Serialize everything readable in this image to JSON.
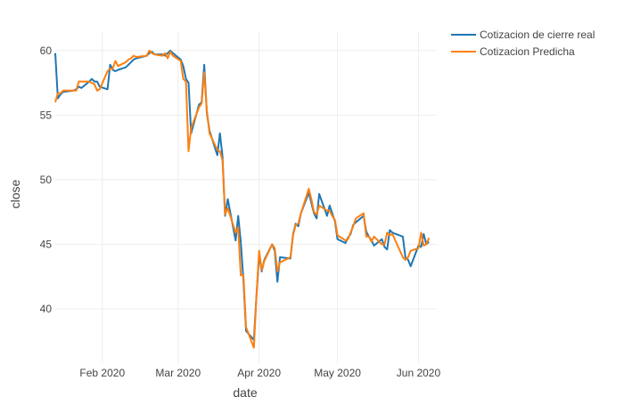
{
  "chart_data": {
    "type": "line",
    "title": "",
    "xlabel": "date",
    "ylabel": "close",
    "x_type": "date",
    "xlim": [
      "2020-01-14",
      "2020-06-08"
    ],
    "ylim": [
      35.8,
      61.5
    ],
    "grid": true,
    "legend_position": "top-right",
    "x_ticks": [
      {
        "date": "2020-02-01",
        "label": "Feb 2020"
      },
      {
        "date": "2020-03-01",
        "label": "Mar 2020"
      },
      {
        "date": "2020-04-01",
        "label": "Apr 2020"
      },
      {
        "date": "2020-05-01",
        "label": "May 2020"
      },
      {
        "date": "2020-06-01",
        "label": "Jun 2020"
      }
    ],
    "y_ticks": [
      40,
      45,
      50,
      55,
      60
    ],
    "series": [
      {
        "name": "Cotizacion de cierre real",
        "color": "#1f77b4",
        "points": [
          [
            "2020-01-14",
            59.8
          ],
          [
            "2020-01-15",
            56.3
          ],
          [
            "2020-01-16",
            56.6
          ],
          [
            "2020-01-17",
            56.8
          ],
          [
            "2020-01-21",
            56.9
          ],
          [
            "2020-01-22",
            57.0
          ],
          [
            "2020-01-23",
            57.2
          ],
          [
            "2020-01-24",
            57.1
          ],
          [
            "2020-01-27",
            57.6
          ],
          [
            "2020-01-28",
            57.8
          ],
          [
            "2020-01-29",
            57.6
          ],
          [
            "2020-01-30",
            57.6
          ],
          [
            "2020-01-31",
            57.2
          ],
          [
            "2020-02-03",
            57.0
          ],
          [
            "2020-02-04",
            58.9
          ],
          [
            "2020-02-05",
            58.5
          ],
          [
            "2020-02-06",
            58.4
          ],
          [
            "2020-02-07",
            58.5
          ],
          [
            "2020-02-10",
            58.7
          ],
          [
            "2020-02-11",
            58.9
          ],
          [
            "2020-02-12",
            59.1
          ],
          [
            "2020-02-13",
            59.3
          ],
          [
            "2020-02-14",
            59.4
          ],
          [
            "2020-02-18",
            59.6
          ],
          [
            "2020-02-19",
            59.8
          ],
          [
            "2020-02-20",
            59.9
          ],
          [
            "2020-02-21",
            59.7
          ],
          [
            "2020-02-24",
            59.7
          ],
          [
            "2020-02-25",
            59.6
          ],
          [
            "2020-02-26",
            59.8
          ],
          [
            "2020-02-27",
            60.0
          ],
          [
            "2020-02-28",
            59.8
          ],
          [
            "2020-03-02",
            59.3
          ],
          [
            "2020-03-03",
            58.8
          ],
          [
            "2020-03-04",
            57.8
          ],
          [
            "2020-03-05",
            57.5
          ],
          [
            "2020-03-06",
            53.6
          ],
          [
            "2020-03-09",
            55.8
          ],
          [
            "2020-03-10",
            56.0
          ],
          [
            "2020-03-11",
            58.9
          ],
          [
            "2020-03-12",
            55.2
          ],
          [
            "2020-03-13",
            53.8
          ],
          [
            "2020-03-16",
            51.9
          ],
          [
            "2020-03-17",
            53.6
          ],
          [
            "2020-03-18",
            51.8
          ],
          [
            "2020-03-19",
            47.2
          ],
          [
            "2020-03-20",
            48.5
          ],
          [
            "2020-03-23",
            45.3
          ],
          [
            "2020-03-24",
            47.2
          ],
          [
            "2020-03-25",
            45.2
          ],
          [
            "2020-03-26",
            42.2
          ],
          [
            "2020-03-27",
            38.3
          ],
          [
            "2020-03-30",
            37.6
          ],
          [
            "2020-03-31",
            41.0
          ],
          [
            "2020-04-01",
            44.2
          ],
          [
            "2020-04-02",
            42.9
          ],
          [
            "2020-04-03",
            43.8
          ],
          [
            "2020-04-06",
            45.0
          ],
          [
            "2020-04-07",
            44.5
          ],
          [
            "2020-04-08",
            42.1
          ],
          [
            "2020-04-09",
            44.0
          ],
          [
            "2020-04-13",
            43.9
          ],
          [
            "2020-04-14",
            45.8
          ],
          [
            "2020-04-15",
            46.6
          ],
          [
            "2020-04-16",
            46.4
          ],
          [
            "2020-04-17",
            47.4
          ],
          [
            "2020-04-20",
            49.0
          ],
          [
            "2020-04-21",
            48.2
          ],
          [
            "2020-04-22",
            47.4
          ],
          [
            "2020-04-23",
            47.0
          ],
          [
            "2020-04-24",
            48.9
          ],
          [
            "2020-04-27",
            47.2
          ],
          [
            "2020-04-28",
            48.0
          ],
          [
            "2020-04-29",
            47.4
          ],
          [
            "2020-04-30",
            46.8
          ],
          [
            "2020-05-01",
            45.4
          ],
          [
            "2020-05-04",
            45.1
          ],
          [
            "2020-05-05",
            45.5
          ],
          [
            "2020-05-06",
            45.8
          ],
          [
            "2020-05-07",
            46.5
          ],
          [
            "2020-05-08",
            46.7
          ],
          [
            "2020-05-11",
            47.2
          ],
          [
            "2020-05-12",
            46.0
          ],
          [
            "2020-05-13",
            45.6
          ],
          [
            "2020-05-14",
            45.3
          ],
          [
            "2020-05-15",
            44.9
          ],
          [
            "2020-05-18",
            45.4
          ],
          [
            "2020-05-19",
            44.8
          ],
          [
            "2020-05-20",
            44.6
          ],
          [
            "2020-05-21",
            46.1
          ],
          [
            "2020-05-22",
            45.9
          ],
          [
            "2020-05-26",
            45.6
          ],
          [
            "2020-05-27",
            44.0
          ],
          [
            "2020-05-28",
            43.8
          ],
          [
            "2020-05-29",
            43.3
          ],
          [
            "2020-06-01",
            44.9
          ],
          [
            "2020-06-02",
            44.8
          ],
          [
            "2020-06-03",
            45.8
          ],
          [
            "2020-06-04",
            45.0
          ],
          [
            "2020-06-05",
            45.2
          ]
        ]
      },
      {
        "name": "Cotizacion Predicha",
        "color": "#ff7f0e",
        "points": [
          [
            "2020-01-14",
            56.0
          ],
          [
            "2020-01-15",
            56.7
          ],
          [
            "2020-01-16",
            56.7
          ],
          [
            "2020-01-17",
            56.9
          ],
          [
            "2020-01-21",
            56.9
          ],
          [
            "2020-01-22",
            56.9
          ],
          [
            "2020-01-23",
            57.6
          ],
          [
            "2020-01-24",
            57.6
          ],
          [
            "2020-01-27",
            57.6
          ],
          [
            "2020-01-28",
            57.5
          ],
          [
            "2020-01-29",
            57.4
          ],
          [
            "2020-01-30",
            56.9
          ],
          [
            "2020-01-31",
            57.0
          ],
          [
            "2020-02-03",
            58.4
          ],
          [
            "2020-02-04",
            58.6
          ],
          [
            "2020-02-05",
            58.6
          ],
          [
            "2020-02-06",
            59.2
          ],
          [
            "2020-02-07",
            58.8
          ],
          [
            "2020-02-10",
            59.1
          ],
          [
            "2020-02-11",
            59.3
          ],
          [
            "2020-02-12",
            59.4
          ],
          [
            "2020-02-13",
            59.6
          ],
          [
            "2020-02-14",
            59.5
          ],
          [
            "2020-02-18",
            59.6
          ],
          [
            "2020-02-19",
            60.0
          ],
          [
            "2020-02-20",
            59.8
          ],
          [
            "2020-02-21",
            59.7
          ],
          [
            "2020-02-24",
            59.6
          ],
          [
            "2020-02-25",
            59.8
          ],
          [
            "2020-02-26",
            59.4
          ],
          [
            "2020-02-27",
            59.9
          ],
          [
            "2020-02-28",
            59.6
          ],
          [
            "2020-03-02",
            59.2
          ],
          [
            "2020-03-03",
            57.8
          ],
          [
            "2020-03-04",
            57.6
          ],
          [
            "2020-03-05",
            52.2
          ],
          [
            "2020-03-06",
            54.0
          ],
          [
            "2020-03-09",
            55.6
          ],
          [
            "2020-03-10",
            55.9
          ],
          [
            "2020-03-11",
            58.3
          ],
          [
            "2020-03-12",
            55.4
          ],
          [
            "2020-03-13",
            53.6
          ],
          [
            "2020-03-16",
            52.3
          ],
          [
            "2020-03-17",
            52.2
          ],
          [
            "2020-03-18",
            51.5
          ],
          [
            "2020-03-19",
            47.3
          ],
          [
            "2020-03-20",
            47.8
          ],
          [
            "2020-03-23",
            45.9
          ],
          [
            "2020-03-24",
            46.3
          ],
          [
            "2020-03-25",
            42.6
          ],
          [
            "2020-03-26",
            42.6
          ],
          [
            "2020-03-27",
            38.6
          ],
          [
            "2020-03-30",
            37.0
          ],
          [
            "2020-03-31",
            41.0
          ],
          [
            "2020-04-01",
            44.5
          ],
          [
            "2020-04-02",
            43.0
          ],
          [
            "2020-04-03",
            43.7
          ],
          [
            "2020-04-06",
            45.0
          ],
          [
            "2020-04-07",
            44.7
          ],
          [
            "2020-04-08",
            42.9
          ],
          [
            "2020-04-09",
            43.6
          ],
          [
            "2020-04-13",
            44.0
          ],
          [
            "2020-04-14",
            45.7
          ],
          [
            "2020-04-15",
            46.5
          ],
          [
            "2020-04-16",
            46.6
          ],
          [
            "2020-04-17",
            47.4
          ],
          [
            "2020-04-20",
            49.3
          ],
          [
            "2020-04-21",
            48.5
          ],
          [
            "2020-04-22",
            47.5
          ],
          [
            "2020-04-23",
            47.3
          ],
          [
            "2020-04-24",
            48.0
          ],
          [
            "2020-04-27",
            47.6
          ],
          [
            "2020-04-28",
            47.6
          ],
          [
            "2020-04-29",
            47.2
          ],
          [
            "2020-04-30",
            46.9
          ],
          [
            "2020-05-01",
            45.7
          ],
          [
            "2020-05-04",
            45.3
          ],
          [
            "2020-05-05",
            45.4
          ],
          [
            "2020-05-06",
            45.9
          ],
          [
            "2020-05-07",
            46.4
          ],
          [
            "2020-05-08",
            47.0
          ],
          [
            "2020-05-11",
            47.4
          ],
          [
            "2020-05-12",
            45.6
          ],
          [
            "2020-05-13",
            45.6
          ],
          [
            "2020-05-14",
            45.2
          ],
          [
            "2020-05-15",
            45.6
          ],
          [
            "2020-05-18",
            45.0
          ],
          [
            "2020-05-19",
            45.0
          ],
          [
            "2020-05-20",
            45.9
          ],
          [
            "2020-05-21",
            45.7
          ],
          [
            "2020-05-22",
            45.8
          ],
          [
            "2020-05-26",
            44.0
          ],
          [
            "2020-05-27",
            43.8
          ],
          [
            "2020-05-28",
            44.0
          ],
          [
            "2020-05-29",
            44.5
          ],
          [
            "2020-06-01",
            44.7
          ],
          [
            "2020-06-02",
            45.9
          ],
          [
            "2020-06-03",
            44.9
          ],
          [
            "2020-06-04",
            45.0
          ],
          [
            "2020-06-05",
            45.5
          ]
        ]
      }
    ]
  }
}
